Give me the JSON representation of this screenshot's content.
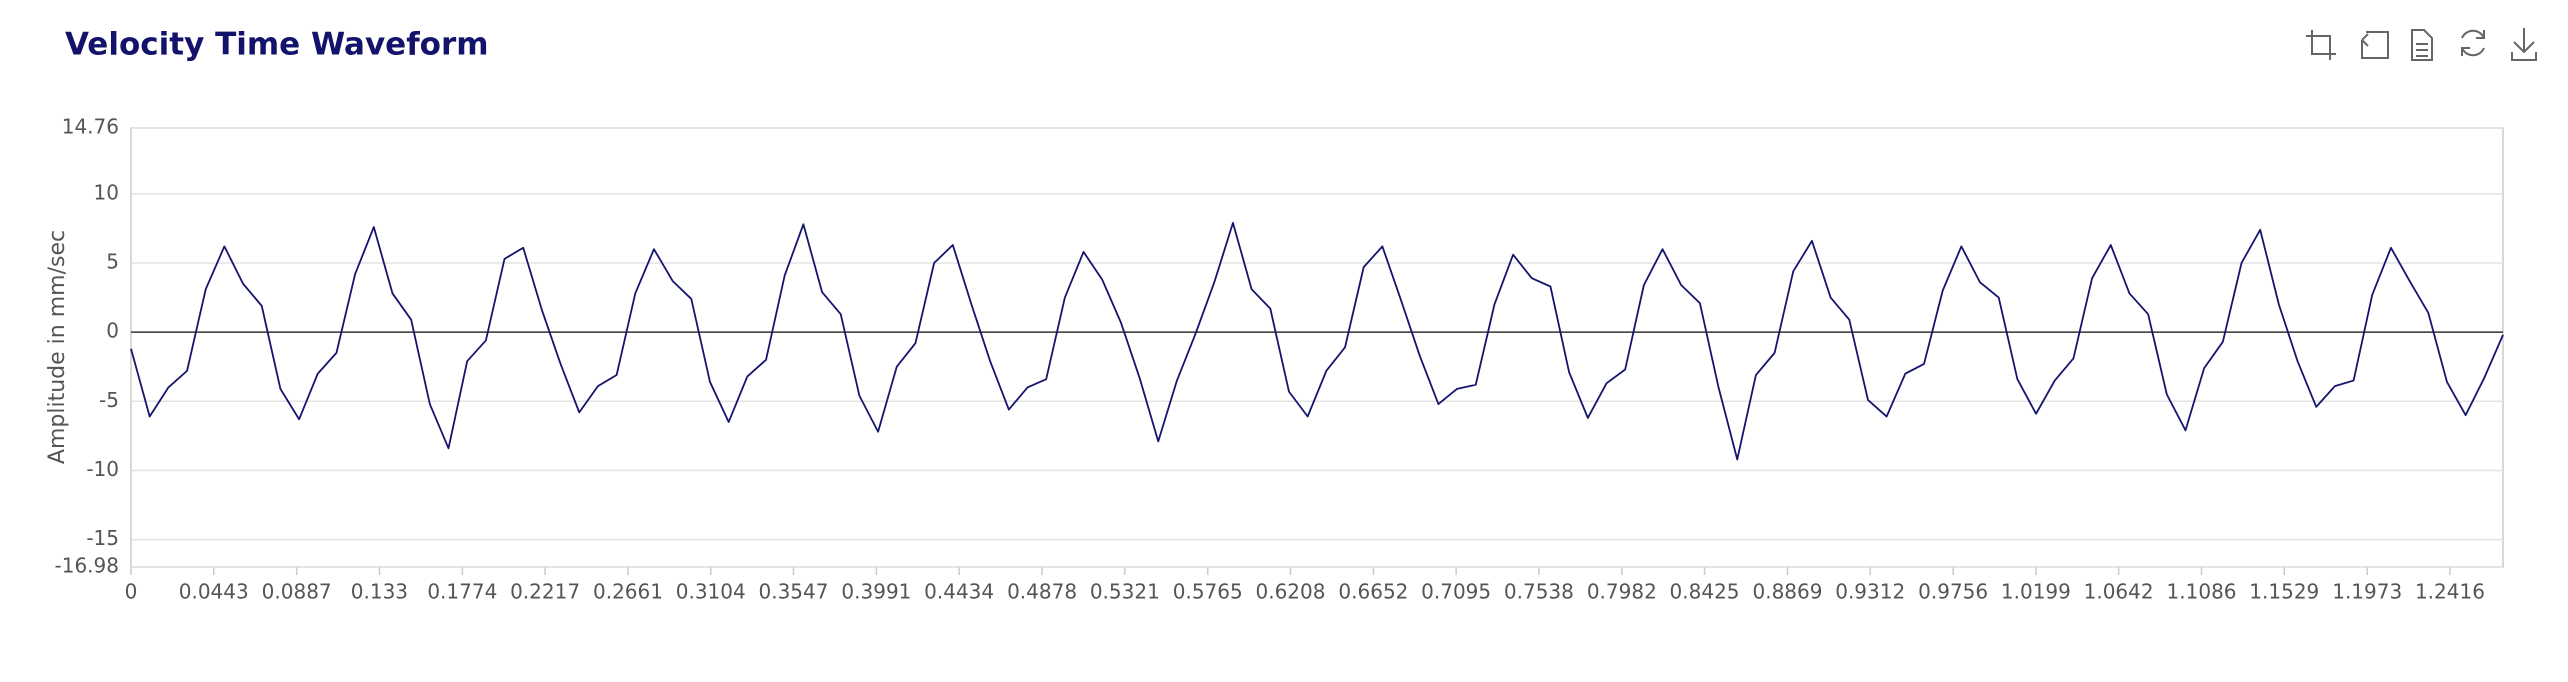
{
  "chart_data": {
    "type": "line",
    "title": "Velocity Time Waveform",
    "y_label": "Amplitude in mm/sec",
    "x": [
      0,
      0.01,
      0.02,
      0.03,
      0.04,
      0.05,
      0.06,
      0.07,
      0.08,
      0.09,
      0.1,
      0.11,
      0.12,
      0.13,
      0.14,
      0.15,
      0.16,
      0.17,
      0.18,
      0.19,
      0.2,
      0.21,
      0.22,
      0.23,
      0.24,
      0.25,
      0.26,
      0.27,
      0.28,
      0.29,
      0.3,
      0.31,
      0.32,
      0.33,
      0.34,
      0.35,
      0.36,
      0.37,
      0.38,
      0.39,
      0.4,
      0.41,
      0.42,
      0.43,
      0.44,
      0.45,
      0.46,
      0.47,
      0.48,
      0.49,
      0.5,
      0.51,
      0.52,
      0.53,
      0.54,
      0.55,
      0.56,
      0.57,
      0.58,
      0.59,
      0.6,
      0.61,
      0.62,
      0.63,
      0.64,
      0.65,
      0.66,
      0.67,
      0.68,
      0.69,
      0.7,
      0.71,
      0.72,
      0.73,
      0.74,
      0.75,
      0.76,
      0.77,
      0.78,
      0.79,
      0.8,
      0.81,
      0.82,
      0.83,
      0.84,
      0.85,
      0.86,
      0.87,
      0.88,
      0.89,
      0.9,
      0.91,
      0.92,
      0.93,
      0.94,
      0.95,
      0.96,
      0.97,
      0.98,
      0.99,
      1.0,
      1.01,
      1.02,
      1.03,
      1.04,
      1.05,
      1.06,
      1.07,
      1.08,
      1.09,
      1.1,
      1.11,
      1.12,
      1.13,
      1.14,
      1.15,
      1.16,
      1.17,
      1.18,
      1.19,
      1.2,
      1.21,
      1.22,
      1.23,
      1.24,
      1.25,
      1.26,
      1.27
    ],
    "series": [
      {
        "name": "Velocity",
        "color": "#15156e",
        "values": [
          -1.2,
          -6.1,
          -4.0,
          -2.8,
          3.1,
          6.2,
          3.5,
          1.9,
          -4.1,
          -6.3,
          -3.0,
          -1.5,
          4.2,
          7.6,
          2.8,
          0.9,
          -5.2,
          -8.4,
          -2.1,
          -0.6,
          5.3,
          6.1,
          1.6,
          -2.3,
          -5.8,
          -3.9,
          -3.1,
          2.8,
          6.0,
          3.7,
          2.4,
          -3.6,
          -6.5,
          -3.2,
          -2.0,
          4.1,
          7.8,
          2.9,
          1.3,
          -4.6,
          -7.2,
          -2.5,
          -0.8,
          5.0,
          6.3,
          2.0,
          -2.1,
          -5.6,
          -4.0,
          -3.4,
          2.5,
          5.8,
          3.8,
          0.7,
          -3.3,
          -7.9,
          -3.5,
          -0.1,
          3.6,
          7.9,
          3.1,
          1.7,
          -4.3,
          -6.1,
          -2.8,
          -1.1,
          4.7,
          6.2,
          2.3,
          -1.7,
          -5.2,
          -4.1,
          -3.8,
          2.0,
          5.6,
          3.9,
          3.3,
          -2.9,
          -6.2,
          -3.7,
          -2.7,
          3.4,
          6.0,
          3.4,
          2.1,
          -4.0,
          -9.2,
          -3.1,
          -1.5,
          4.4,
          6.6,
          2.5,
          0.9,
          -4.9,
          -6.1,
          -3.0,
          -2.3,
          3.0,
          6.2,
          3.6,
          2.5,
          -3.4,
          -5.9,
          -3.5,
          -1.9,
          3.9,
          6.3,
          2.8,
          1.3,
          -4.5,
          -7.1,
          -2.6,
          -0.7,
          5.0,
          7.4,
          2.0,
          -2.1,
          -5.4,
          -3.9,
          -3.5,
          2.7,
          6.1,
          3.7,
          1.4,
          -3.6,
          -6.0,
          -3.3,
          -0.2
        ]
      }
    ],
    "xlim": [
      0,
      1.27
    ],
    "xticks": [
      0,
      0.0443,
      0.0887,
      0.133,
      0.1774,
      0.2217,
      0.2661,
      0.3104,
      0.3547,
      0.3991,
      0.4434,
      0.4878,
      0.5321,
      0.5765,
      0.6208,
      0.6652,
      0.7095,
      0.7538,
      0.7982,
      0.8425,
      0.8869,
      0.9312,
      0.9756,
      1.0199,
      1.0642,
      1.1086,
      1.1529,
      1.1973,
      1.2416
    ],
    "ylim": [
      -16.98,
      14.76
    ],
    "yticks": [
      -16.98,
      -15,
      -10,
      -5,
      0,
      5,
      10,
      14.76
    ],
    "grid": true
  }
}
